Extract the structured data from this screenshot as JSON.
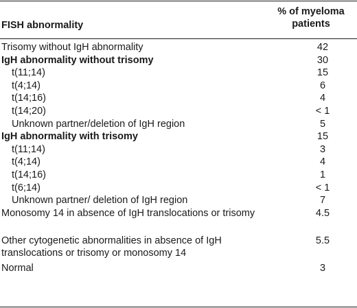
{
  "table": {
    "header": {
      "label": "FISH abnormality",
      "value_line1": "% of myeloma",
      "value_line2": "patients"
    },
    "rows": [
      {
        "label": "Trisomy without IgH abnormality",
        "value": "42",
        "style": "normal"
      },
      {
        "label": "IgH abnormality without trisomy",
        "value": "30",
        "style": "bold"
      },
      {
        "label": "t(11;14)",
        "value": "15",
        "style": "indent"
      },
      {
        "label": "t(4;14)",
        "value": "6",
        "style": "indent"
      },
      {
        "label": "t(14;16)",
        "value": "4",
        "style": "indent"
      },
      {
        "label": "t(14;20)",
        "value": "< 1",
        "style": "indent"
      },
      {
        "label": "Unknown partner/deletion of IgH region",
        "value": "5",
        "style": "indent"
      },
      {
        "label": "IgH abnormality with trisomy",
        "value": "15",
        "style": "bold"
      },
      {
        "label": "t(11;14)",
        "value": "3",
        "style": "indent"
      },
      {
        "label": "t(4;14)",
        "value": "4",
        "style": "indent"
      },
      {
        "label": "t(14;16)",
        "value": "1",
        "style": "indent"
      },
      {
        "label": "t(6;14)",
        "value": "< 1",
        "style": "indent"
      },
      {
        "label": "Unknown partner/ deletion of IgH region",
        "value": "7",
        "style": "indent"
      },
      {
        "label": "Monosomy 14 in absence of IgH translocations or trisomy",
        "value": "4.5",
        "style": "two-line"
      },
      {
        "label": "Other cytogenetic abnormalities in absence of IgH translocations or trisomy or monosomy 14",
        "value": "5.5",
        "style": "two-line"
      },
      {
        "label": "Normal",
        "value": "3",
        "style": "normal"
      }
    ]
  }
}
